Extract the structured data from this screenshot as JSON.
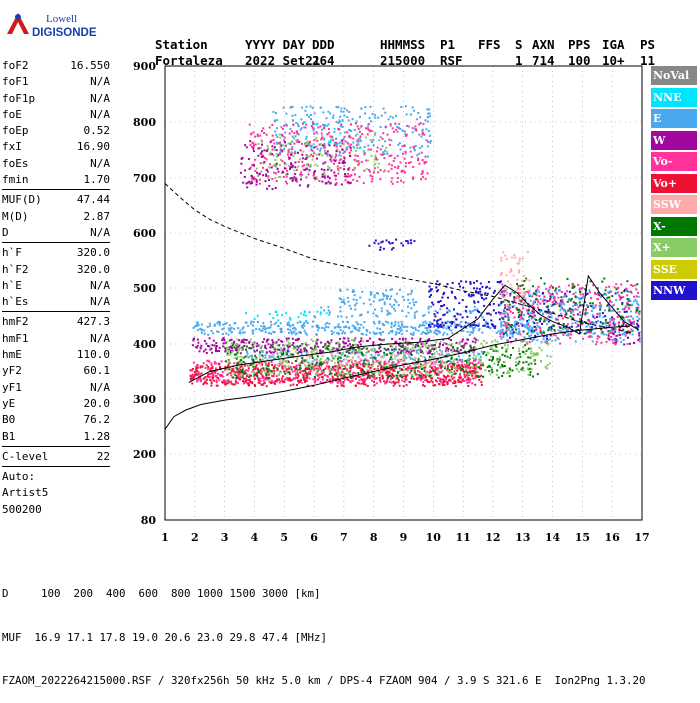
{
  "logo": {
    "line1": "Lowell",
    "line2": "DIGISONDE"
  },
  "header": {
    "row1": [
      "Station",
      "YYYY DAY",
      "DDD",
      "HHMMSS",
      "P1",
      "FFS",
      "S",
      "AXN",
      "PPS",
      "IGA",
      "PS"
    ],
    "row2": [
      "Fortaleza",
      "2022 Set21",
      "264",
      "215000",
      "RSF",
      "1",
      "714",
      "100",
      "10+",
      "11"
    ]
  },
  "params_groups": [
    [
      {
        "name": "foF2",
        "value": "16.550"
      },
      {
        "name": "foF1",
        "value": "N/A"
      },
      {
        "name": "foF1p",
        "value": "N/A"
      },
      {
        "name": "foE",
        "value": "N/A"
      },
      {
        "name": "foEp",
        "value": "0.52"
      },
      {
        "name": "fxI",
        "value": "16.90"
      },
      {
        "name": "foEs",
        "value": "N/A"
      },
      {
        "name": "fmin",
        "value": "1.70"
      }
    ],
    [
      {
        "name": "MUF(D)",
        "value": "47.44"
      },
      {
        "name": "M(D)",
        "value": "2.87"
      },
      {
        "name": "D",
        "value": "N/A"
      }
    ],
    [
      {
        "name": "h`F",
        "value": "320.0"
      },
      {
        "name": "h`F2",
        "value": "320.0"
      },
      {
        "name": "h`E",
        "value": "N/A"
      },
      {
        "name": "h`Es",
        "value": "N/A"
      }
    ],
    [
      {
        "name": "hmF2",
        "value": "427.3"
      },
      {
        "name": "hmF1",
        "value": "N/A"
      },
      {
        "name": "hmE",
        "value": "110.0"
      },
      {
        "name": "yF2",
        "value": "60.1"
      },
      {
        "name": "yF1",
        "value": "N/A"
      },
      {
        "name": "yE",
        "value": "20.0"
      },
      {
        "name": "B0",
        "value": "76.2"
      },
      {
        "name": "B1",
        "value": "1.28"
      }
    ],
    [
      {
        "name": "C-level",
        "value": "22"
      }
    ]
  ],
  "auto": [
    "Auto:",
    "Artist5",
    "500200"
  ],
  "legend": [
    {
      "label": "NoVal",
      "color": "#888888"
    },
    {
      "label": "NNE",
      "color": "#00e5ff"
    },
    {
      "label": "E",
      "color": "#4aa8f0"
    },
    {
      "label": "W",
      "color": "#a0089e"
    },
    {
      "label": "Vo-",
      "color": "#ff3399"
    },
    {
      "label": "Vo+",
      "color": "#ee1133"
    },
    {
      "label": "SSW",
      "color": "#ffaaaa"
    },
    {
      "label": "X-",
      "color": "#007700"
    },
    {
      "label": "X+",
      "color": "#88cc66"
    },
    {
      "label": "SSE",
      "color": "#cccc00"
    },
    {
      "label": "NNW",
      "color": "#2211cc"
    }
  ],
  "footer": {
    "d_row": "D     100  200  400  600  800 1000 1500 3000 [km]",
    "muf_row": "MUF  16.9 17.1 17.8 19.0 20.6 23.0 29.8 47.4 [MHz]",
    "info_row": "FZAOM_2022264215000.RSF / 320fx256h 50 kHz 5.0 km / DPS-4 FZAOM 904 / 3.9 S 321.6 E  Ion2Png 1.3.20"
  },
  "chart_data": {
    "type": "scatter",
    "x_ticks": [
      1,
      2,
      3,
      4,
      5,
      6,
      7,
      8,
      9,
      10,
      11,
      12,
      13,
      14,
      15,
      16,
      17
    ],
    "y_ticks": [
      80,
      200,
      300,
      400,
      500,
      600,
      700,
      800,
      900
    ],
    "xlim": [
      1,
      17
    ],
    "ylim": [
      80,
      900
    ],
    "grid": "dotted",
    "legend_position": "right",
    "clusters": [
      {
        "mode": "E",
        "xr": [
          1.9,
          13.6
        ],
        "yr": [
          418,
          442
        ],
        "density": 1.0
      },
      {
        "mode": "E",
        "xr": [
          6.8,
          9.4
        ],
        "yr": [
          470,
          500
        ],
        "density": 0.6
      },
      {
        "mode": "E",
        "xr": [
          5.8,
          11.8
        ],
        "yr": [
          448,
          470
        ],
        "density": 0.35
      },
      {
        "mode": "E",
        "xr": [
          3.6,
          11.6
        ],
        "yr": [
          368,
          392
        ],
        "density": 0.6
      },
      {
        "mode": "W",
        "xr": [
          1.9,
          11.5
        ],
        "yr": [
          385,
          412
        ],
        "density": 0.9
      },
      {
        "mode": "Vo-",
        "xr": [
          1.8,
          11.6
        ],
        "yr": [
          330,
          372
        ],
        "density": 1.0
      },
      {
        "mode": "Vo+",
        "xr": [
          1.8,
          11.6
        ],
        "yr": [
          325,
          365
        ],
        "density": 0.8
      },
      {
        "mode": "X-",
        "xr": [
          3.0,
          13.6
        ],
        "yr": [
          340,
          400
        ],
        "density": 0.4
      },
      {
        "mode": "X+",
        "xr": [
          3.0,
          14.0
        ],
        "yr": [
          345,
          410
        ],
        "density": 0.35
      },
      {
        "mode": "SSW",
        "xr": [
          4.0,
          10.5
        ],
        "yr": [
          360,
          390
        ],
        "density": 0.25
      },
      {
        "mode": "NNW",
        "xr": [
          9.8,
          12.4
        ],
        "yr": [
          430,
          515
        ],
        "density": 0.5
      },
      {
        "mode": "NNW",
        "xr": [
          7.8,
          9.4
        ],
        "yr": [
          570,
          590
        ],
        "density": 0.5
      },
      {
        "mode": "NNW",
        "xr": [
          12.2,
          16.9
        ],
        "yr": [
          410,
          500
        ],
        "density": 0.25
      },
      {
        "mode": "Vo-",
        "xr": [
          12.2,
          16.9
        ],
        "yr": [
          400,
          510
        ],
        "density": 0.4
      },
      {
        "mode": "E",
        "xr": [
          12.2,
          16.9
        ],
        "yr": [
          405,
          500
        ],
        "density": 0.4
      },
      {
        "mode": "W",
        "xr": [
          15.8,
          16.9
        ],
        "yr": [
          400,
          440
        ],
        "density": 0.5
      },
      {
        "mode": "X-",
        "xr": [
          12.3,
          16.9
        ],
        "yr": [
          420,
          520
        ],
        "density": 0.2
      },
      {
        "mode": "SSW",
        "xr": [
          12.2,
          13.2
        ],
        "yr": [
          470,
          570
        ],
        "density": 0.4
      },
      {
        "mode": "E",
        "xr": [
          4.6,
          9.9
        ],
        "yr": [
          740,
          830
        ],
        "density": 0.35
      },
      {
        "mode": "NNE",
        "xr": [
          5.6,
          7.6
        ],
        "yr": [
          755,
          805
        ],
        "density": 0.15
      },
      {
        "mode": "Vo-",
        "xr": [
          3.8,
          9.8
        ],
        "yr": [
          690,
          800
        ],
        "density": 0.35
      },
      {
        "mode": "W",
        "xr": [
          3.5,
          7.2
        ],
        "yr": [
          680,
          770
        ],
        "density": 0.35
      },
      {
        "mode": "X+",
        "xr": [
          4.0,
          8.5
        ],
        "yr": [
          700,
          780
        ],
        "density": 0.2
      },
      {
        "mode": "NNE",
        "xr": [
          3.5,
          6.5
        ],
        "yr": [
          440,
          460
        ],
        "density": 0.3
      }
    ],
    "trace_line": {
      "x": [
        1.8,
        2.5,
        3.5,
        4.5,
        5.5,
        6.5,
        7.5,
        8.5,
        9.5,
        10.5,
        11.5,
        12.0,
        12.4,
        12.8,
        13.2,
        13.6,
        14.0,
        14.5,
        14.9,
        15.2,
        15.6,
        16.0,
        16.4,
        16.9
      ],
      "y": [
        330,
        350,
        362,
        370,
        378,
        385,
        395,
        400,
        403,
        410,
        445,
        480,
        505,
        492,
        470,
        452,
        440,
        430,
        418,
        522,
        490,
        465,
        440,
        425
      ]
    },
    "profile_line": {
      "x": [
        1.0,
        1.3,
        1.7,
        2.2,
        3.0,
        4.0,
        5.0,
        6.0,
        7.0,
        8.0,
        9.0,
        10.0,
        11.0,
        12.0,
        13.0,
        14.0,
        15.0,
        16.0,
        16.6
      ],
      "y": [
        245,
        268,
        280,
        290,
        298,
        305,
        314,
        325,
        338,
        350,
        362,
        372,
        384,
        398,
        408,
        418,
        425,
        430,
        432
      ]
    },
    "dashed_line": {
      "x": [
        1.0,
        1.5,
        2.0,
        2.5,
        3.0,
        4.0,
        5.0,
        6.0,
        7.0,
        8.0,
        9.0,
        10.0,
        11.0,
        12.0,
        13.0,
        14.0,
        15.0,
        16.0,
        16.6
      ],
      "y": [
        690,
        665,
        642,
        625,
        612,
        590,
        572,
        552,
        540,
        528,
        518,
        508,
        495,
        485,
        470,
        455,
        438,
        428,
        420
      ]
    }
  }
}
